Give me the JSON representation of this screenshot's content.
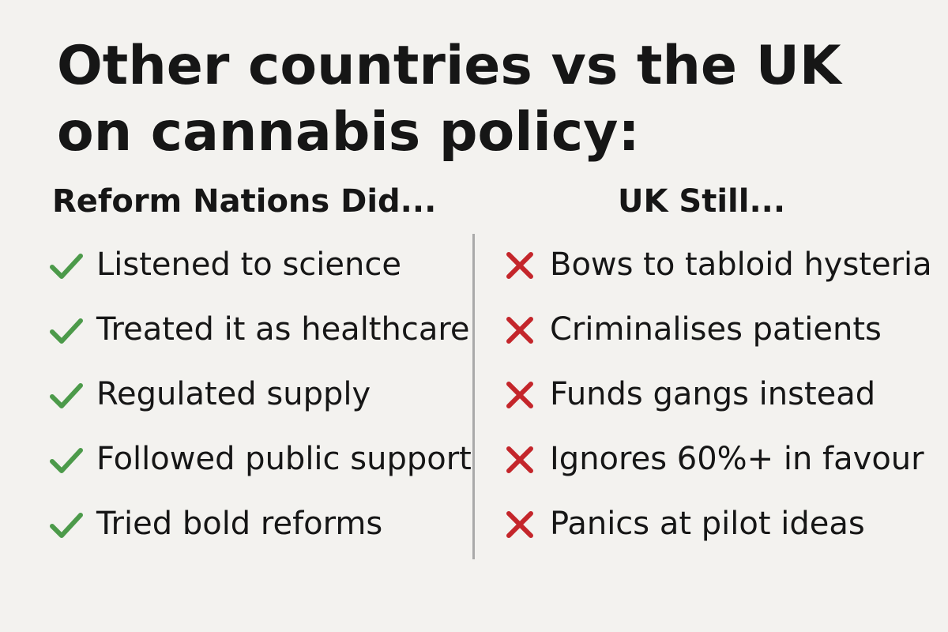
{
  "title": "Other countries vs the UK on cannabis policy:",
  "left": {
    "heading": "Reform Nations Did...",
    "items": [
      "Listened to science",
      "Treated it as healthcare",
      "Regulated supply",
      "Followed public support",
      "Tried bold reforms"
    ]
  },
  "right": {
    "heading": "UK Still...",
    "items": [
      "Bows to tabloid hysteria",
      "Criminalises patients",
      "Funds gangs instead",
      "Ignores 60%+ in favour",
      "Panics at pilot ideas"
    ]
  }
}
